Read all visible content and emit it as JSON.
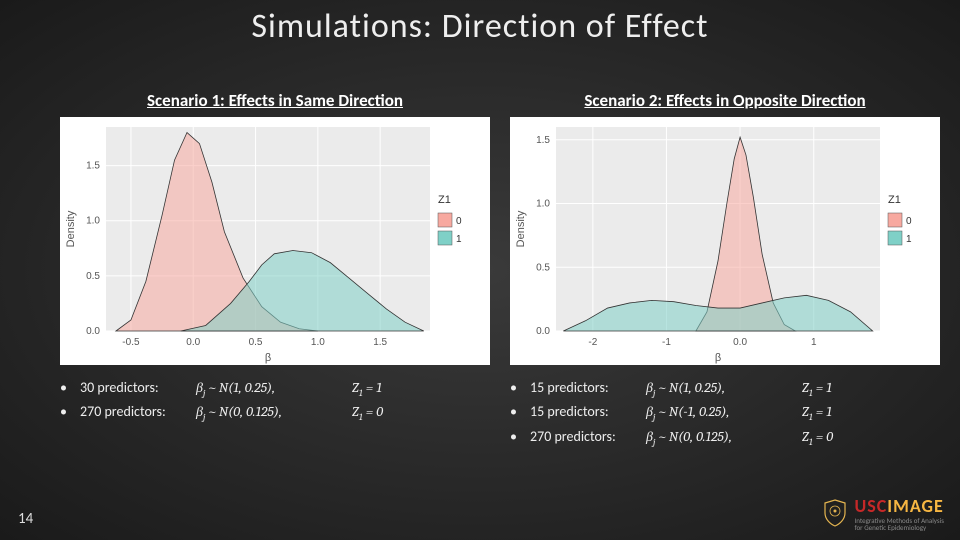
{
  "title": "Simulations: Direction of Effect",
  "page_number": "14",
  "logo": {
    "part1": "USC",
    "part2": "IMAGE",
    "subtitle": "Integrative Methods of Analysis\nfor Genetic Epidemiology",
    "color_usc": "#c62828",
    "color_image": "#f6b642"
  },
  "legend": {
    "title": "Z1",
    "items": [
      {
        "label": "0",
        "color": "#f7a9a0"
      },
      {
        "label": "1",
        "color": "#7fd0c7"
      }
    ]
  },
  "general_style": {
    "background_colors": [
      "#3a3a3a",
      "#1a1a1a"
    ],
    "plot_bg": "#ebebeb",
    "panel_bg": "#ffffff",
    "gridline_color": "#ffffff",
    "axis_text_color": "#555555",
    "density_alpha": 0.55
  },
  "scenario1": {
    "heading": "Scenario 1: Effects in Same Direction",
    "chart": {
      "type": "density",
      "xlabel": "β",
      "ylabel": "Density",
      "xlim": [
        -0.7,
        1.9
      ],
      "ylim": [
        0.0,
        1.85
      ],
      "xticks": [
        -0.5,
        0.0,
        0.5,
        1.0,
        1.5
      ],
      "yticks": [
        0.0,
        0.5,
        1.0,
        1.5
      ],
      "series": [
        {
          "name": "Z1=0",
          "color": "#f7a9a0",
          "stroke": "#333333",
          "points": [
            [
              -0.62,
              0.0
            ],
            [
              -0.5,
              0.1
            ],
            [
              -0.38,
              0.45
            ],
            [
              -0.25,
              1.05
            ],
            [
              -0.15,
              1.55
            ],
            [
              -0.05,
              1.8
            ],
            [
              0.05,
              1.7
            ],
            [
              0.15,
              1.35
            ],
            [
              0.25,
              0.9
            ],
            [
              0.4,
              0.48
            ],
            [
              0.55,
              0.22
            ],
            [
              0.7,
              0.08
            ],
            [
              0.85,
              0.02
            ],
            [
              1.0,
              0.0
            ]
          ]
        },
        {
          "name": "Z1=1",
          "color": "#7fd0c7",
          "stroke": "#333333",
          "points": [
            [
              -0.1,
              0.0
            ],
            [
              0.1,
              0.05
            ],
            [
              0.3,
              0.25
            ],
            [
              0.45,
              0.45
            ],
            [
              0.55,
              0.6
            ],
            [
              0.65,
              0.7
            ],
            [
              0.8,
              0.73
            ],
            [
              0.95,
              0.71
            ],
            [
              1.1,
              0.62
            ],
            [
              1.25,
              0.48
            ],
            [
              1.4,
              0.34
            ],
            [
              1.55,
              0.2
            ],
            [
              1.7,
              0.08
            ],
            [
              1.85,
              0.0
            ]
          ]
        }
      ]
    },
    "bullets": [
      {
        "count": "30 predictors:",
        "dist": "βⱼ ~ N(1, 0.25),",
        "z": "Z₁ = 1"
      },
      {
        "count": "270 predictors:",
        "dist": "βⱼ ~ N(0, 0.125),",
        "z": "Z₁ = 0"
      }
    ]
  },
  "scenario2": {
    "heading": "Scenario 2: Effects in Opposite Direction",
    "chart": {
      "type": "density",
      "xlabel": "β",
      "ylabel": "Density",
      "xlim": [
        -2.5,
        1.9
      ],
      "ylim": [
        0.0,
        1.6
      ],
      "xticks": [
        -2,
        -1,
        0,
        1
      ],
      "yticks": [
        0.0,
        0.5,
        1.0,
        1.5
      ],
      "series": [
        {
          "name": "Z1=0",
          "color": "#f7a9a0",
          "stroke": "#333333",
          "points": [
            [
              -0.6,
              0.0
            ],
            [
              -0.45,
              0.15
            ],
            [
              -0.3,
              0.55
            ],
            [
              -0.18,
              1.0
            ],
            [
              -0.08,
              1.35
            ],
            [
              0.0,
              1.52
            ],
            [
              0.08,
              1.38
            ],
            [
              0.18,
              1.05
            ],
            [
              0.3,
              0.6
            ],
            [
              0.45,
              0.22
            ],
            [
              0.6,
              0.05
            ],
            [
              0.75,
              0.0
            ]
          ]
        },
        {
          "name": "Z1=1",
          "color": "#7fd0c7",
          "stroke": "#333333",
          "points": [
            [
              -2.4,
              0.0
            ],
            [
              -2.1,
              0.08
            ],
            [
              -1.8,
              0.18
            ],
            [
              -1.5,
              0.22
            ],
            [
              -1.2,
              0.24
            ],
            [
              -0.9,
              0.23
            ],
            [
              -0.6,
              0.2
            ],
            [
              -0.3,
              0.18
            ],
            [
              0.0,
              0.18
            ],
            [
              0.3,
              0.22
            ],
            [
              0.6,
              0.26
            ],
            [
              0.9,
              0.28
            ],
            [
              1.2,
              0.24
            ],
            [
              1.5,
              0.15
            ],
            [
              1.8,
              0.0
            ]
          ]
        }
      ]
    },
    "bullets": [
      {
        "count": "15 predictors:",
        "dist": "βⱼ ~ N(1, 0.25),",
        "z": "Z₁ = 1"
      },
      {
        "count": "15 predictors:",
        "dist": "βⱼ ~ N(-1, 0.25),",
        "z": "Z₁ = 1"
      },
      {
        "count": "270 predictors:",
        "dist": "βⱼ ~ N(0, 0.125),",
        "z": "Z₁ = 0"
      }
    ]
  }
}
